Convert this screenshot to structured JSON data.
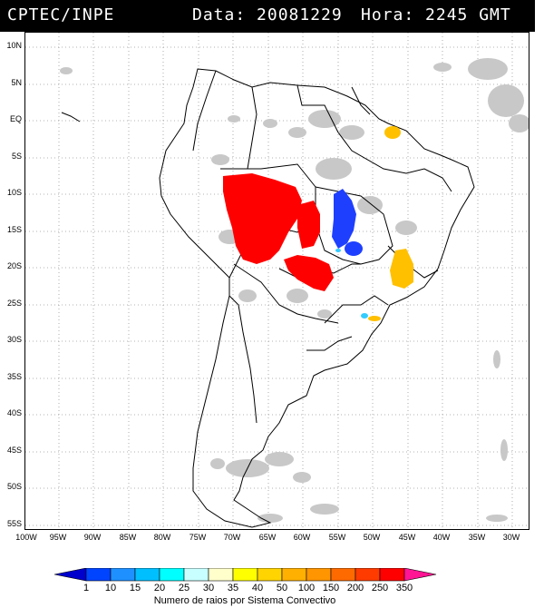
{
  "header": {
    "agency": "CPTEC/INPE",
    "date_label": "Data: 20081229",
    "time_label": "Hora: 2245 GMT"
  },
  "lat_labels": [
    "10N",
    "5N",
    "EQ",
    "5S",
    "10S",
    "15S",
    "20S",
    "25S",
    "30S",
    "35S",
    "40S",
    "45S",
    "50S",
    "55S"
  ],
  "lon_labels": [
    "100W",
    "95W",
    "90W",
    "85W",
    "80W",
    "75W",
    "70W",
    "65W",
    "60W",
    "55W",
    "50W",
    "45W",
    "40W",
    "35W",
    "30W"
  ],
  "colorbar": {
    "ticks": [
      "1",
      "10",
      "15",
      "20",
      "25",
      "30",
      "35",
      "40",
      "50",
      "100",
      "150",
      "200",
      "250",
      "350"
    ],
    "colors": [
      "#0000cc",
      "#0044ff",
      "#1e90ff",
      "#00bfff",
      "#00ffff",
      "#c8ffff",
      "#ffffcc",
      "#ffff00",
      "#ffd400",
      "#ffb000",
      "#ff9500",
      "#ff6a00",
      "#ff3b00",
      "#ff0000",
      "#ff1493"
    ],
    "title": "Numero de raios por Sistema Convectivo"
  },
  "map_colors": {
    "cloud": "#c8c8c8",
    "red_systems": "#ff0000",
    "blue_systems": "#1f3fff",
    "yellow_systems": "#ffc000",
    "cyan_systems": "#33ccff"
  }
}
